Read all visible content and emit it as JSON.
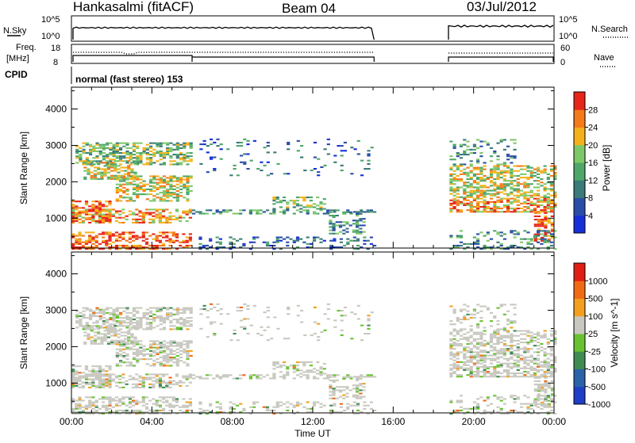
{
  "header": {
    "station": "Hankasalmi (fitACF)",
    "beam": "Beam 04",
    "date": "03/Jul/2012"
  },
  "control_panels": {
    "nsky_label": "N.Sky",
    "nsky_ticks": [
      "10^5",
      "10^0"
    ],
    "nsearch_label": "N.Search",
    "nsearch_ticks": [
      "10^5",
      "10^0"
    ],
    "freq_label": "Freq.",
    "freq_unit": "[MHz]",
    "freq_ticks": [
      "18",
      "8"
    ],
    "nave_label": "Nave",
    "nave_ticks": [
      "60",
      "0"
    ],
    "cpid_label": "CPID",
    "cpid_text": "normal (fast stereo) 153"
  },
  "chart_data": [
    {
      "type": "heatmap",
      "name": "power",
      "ylabel": "Slant Range [km]",
      "xlabel": "",
      "x_ticks": [
        "00:00",
        "04:00",
        "08:00",
        "12:00",
        "16:00",
        "20:00",
        "00:00"
      ],
      "y_ticks": [
        1000,
        2000,
        3000,
        4000
      ],
      "xlim": [
        0,
        24
      ],
      "ylim": [
        180,
        4600
      ],
      "data_gap_hours": [
        15.05,
        18.75
      ],
      "colorbar": {
        "label": "Power [dB]",
        "ticks": [
          "4",
          "8",
          "12",
          "16",
          "20",
          "24",
          "28"
        ],
        "colors": [
          "#1530d8",
          "#2a4ea8",
          "#3a7a78",
          "#4ea66a",
          "#7ec86a",
          "#f3b21b",
          "#f47a1a",
          "#e6261a"
        ]
      }
    },
    {
      "type": "heatmap",
      "name": "velocity",
      "ylabel": "Slant Range [km]",
      "xlabel": "Time UT",
      "x_ticks": [
        "00:00",
        "04:00",
        "08:00",
        "12:00",
        "16:00",
        "20:00",
        "00:00"
      ],
      "y_ticks": [
        1000,
        2000,
        3000,
        4000
      ],
      "xlim": [
        0,
        24
      ],
      "ylim": [
        180,
        4600
      ],
      "data_gap_hours": [
        15.05,
        18.75
      ],
      "colorbar": {
        "label": "Velocity [m s^-1]",
        "ticks": [
          "1000",
          "500",
          "100",
          "25",
          "-25",
          "-100",
          "-500",
          "-1000"
        ],
        "colors": [
          "#1e3ec8",
          "#2a62a8",
          "#3f8c52",
          "#68c230",
          "#c8c8c0",
          "#f3a020",
          "#f06a14",
          "#e01e14"
        ]
      }
    }
  ]
}
